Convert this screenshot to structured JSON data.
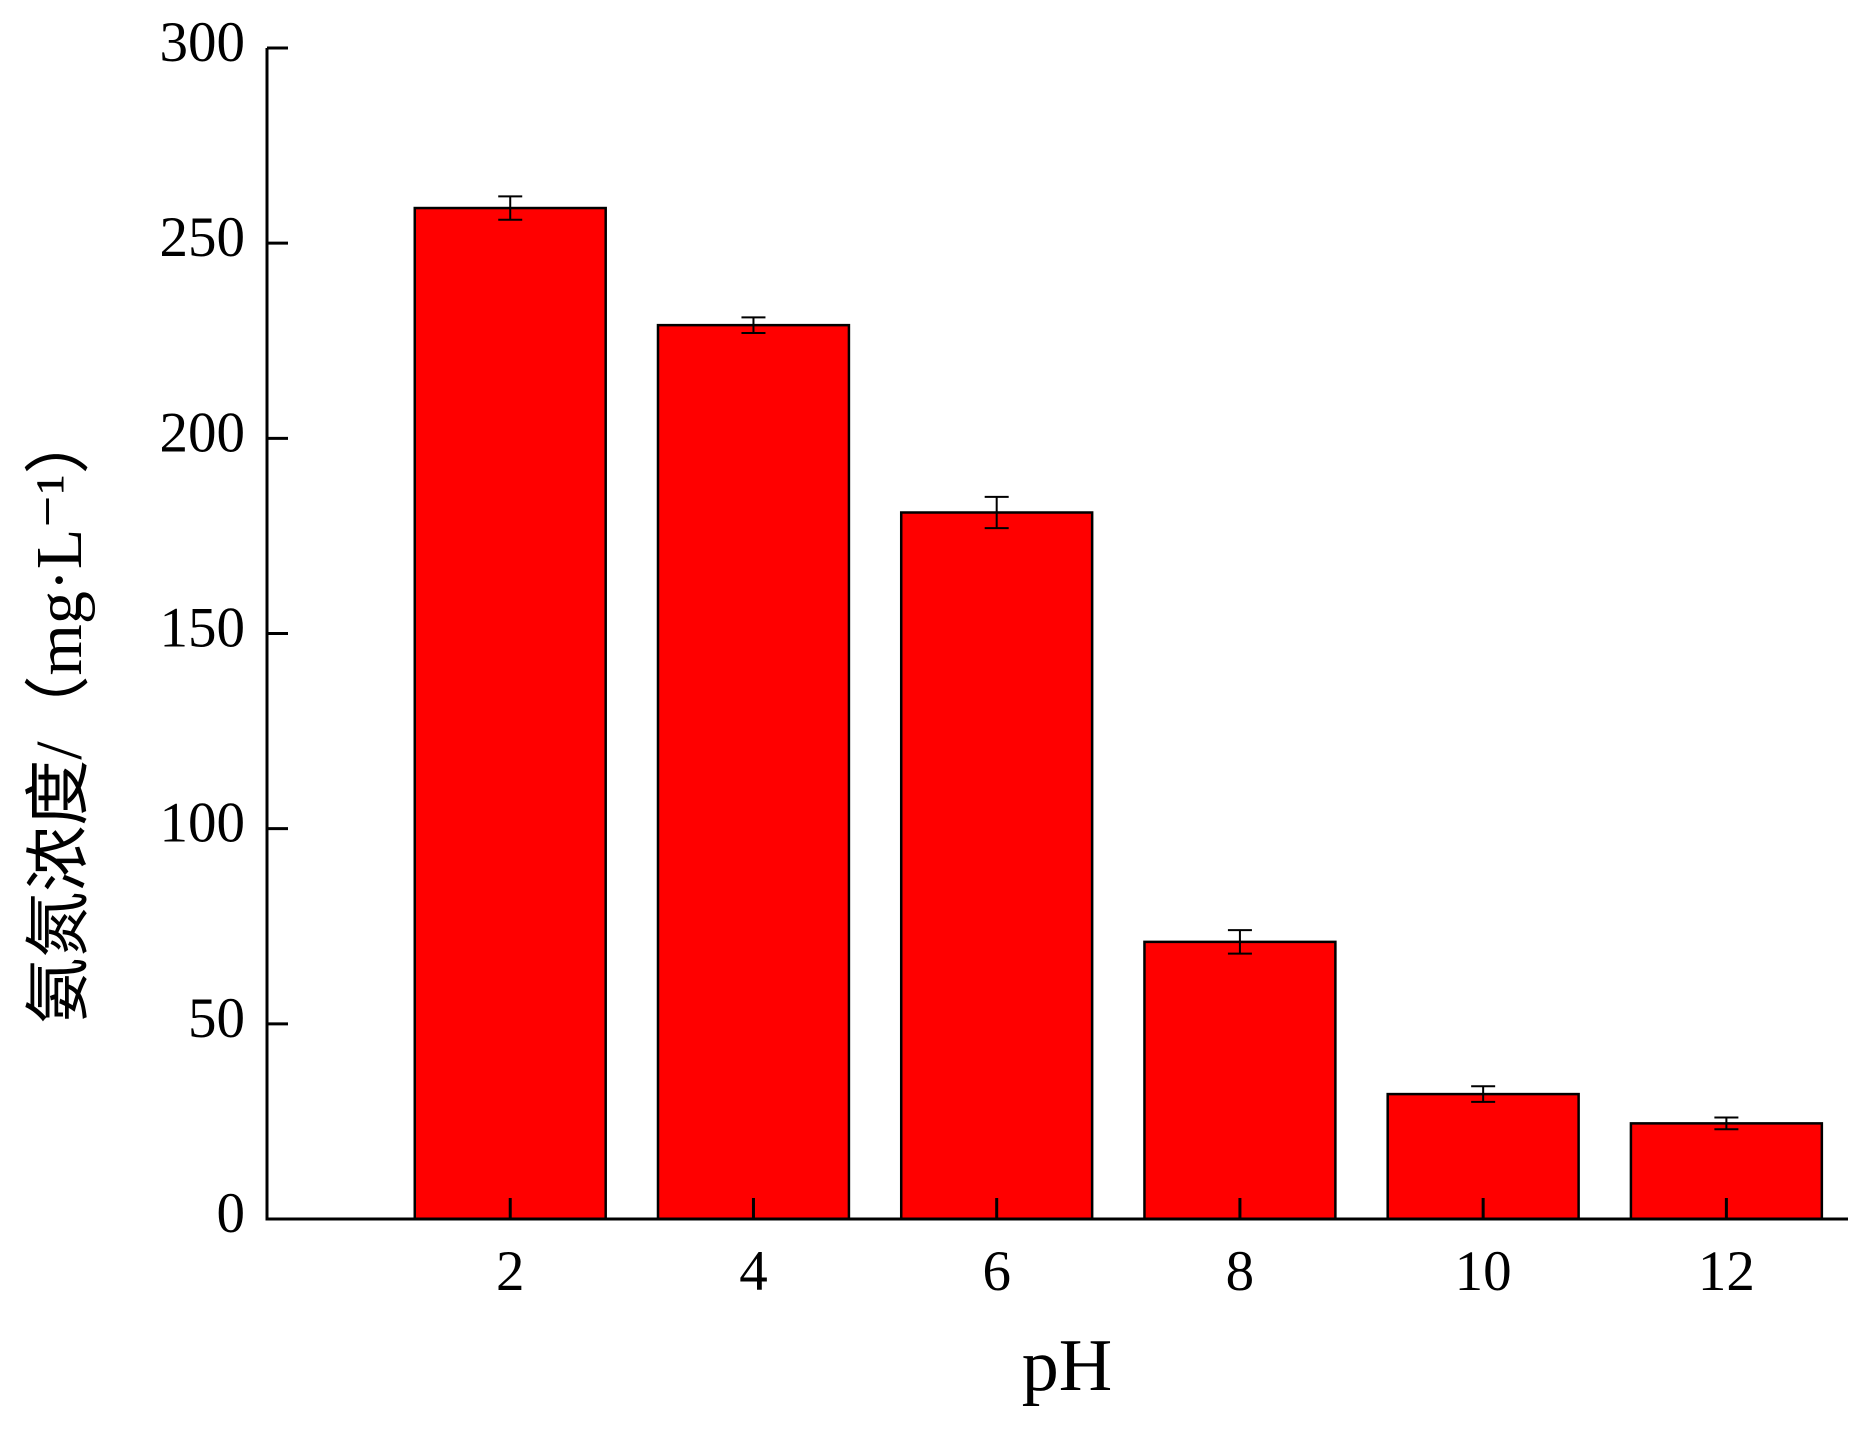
{
  "chart_data": {
    "type": "bar",
    "x_label": "pH",
    "y_label": "氨氮浓度/（mg·L⁻¹）",
    "x": [
      2,
      4,
      6,
      8,
      10,
      12
    ],
    "values": [
      259,
      229,
      181,
      71,
      32,
      24.5
    ],
    "errors": [
      3,
      2,
      4,
      3,
      2,
      1.5
    ],
    "color": "#ff0000",
    "xlim": [
      0,
      13
    ],
    "xticks": [
      2,
      4,
      6,
      8,
      10,
      12
    ],
    "ylim": [
      0,
      300
    ],
    "yticks": [
      0,
      50,
      100,
      150,
      200,
      250,
      300
    ],
    "grid": false
  }
}
